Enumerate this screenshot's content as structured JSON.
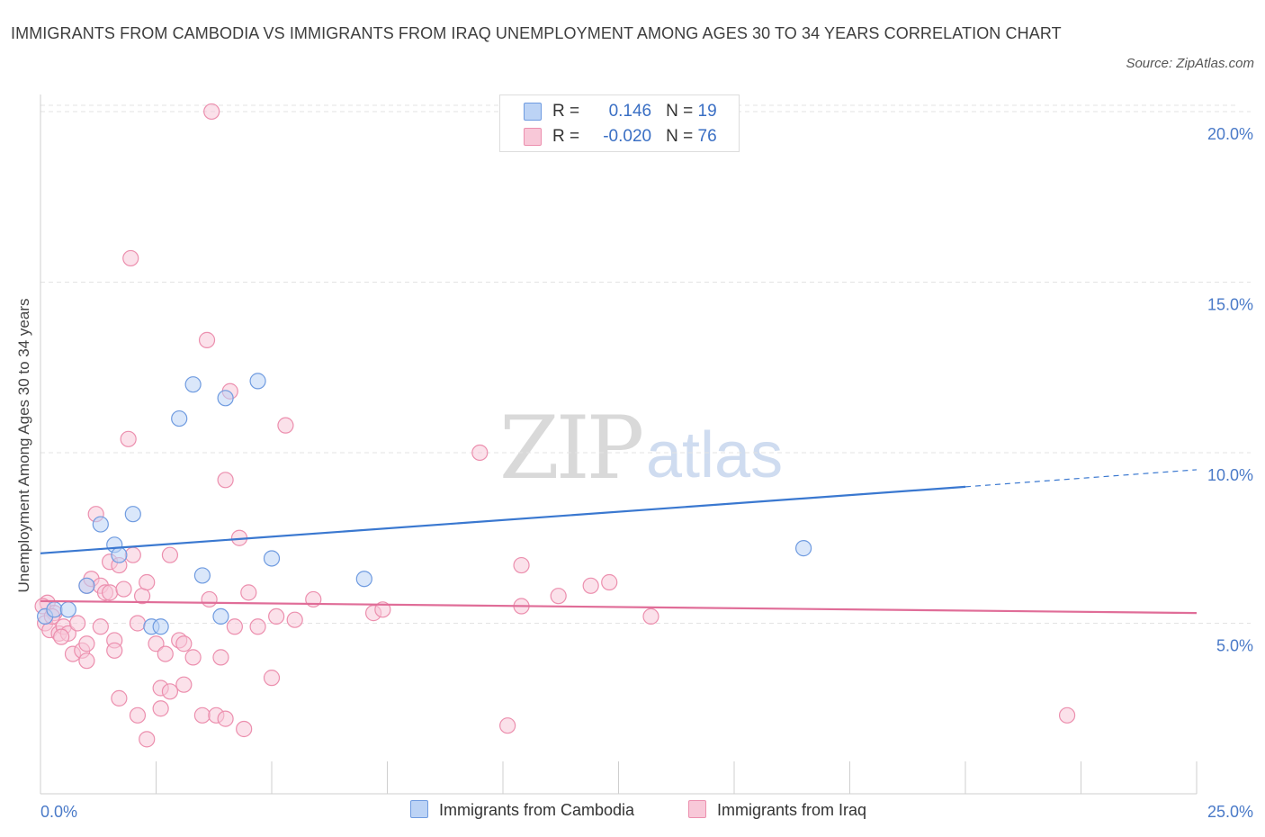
{
  "title": "IMMIGRANTS FROM CAMBODIA VS IMMIGRANTS FROM IRAQ UNEMPLOYMENT AMONG AGES 30 TO 34 YEARS CORRELATION CHART",
  "source": "Source: ZipAtlas.com",
  "watermark": {
    "zip": "ZIP",
    "atlas": "atlas"
  },
  "colors": {
    "cambodia_fill": "#bcd3f5",
    "cambodia_stroke": "#6f9be0",
    "cambodia_line": "#3a78d0",
    "iraq_fill": "#f8c8d8",
    "iraq_stroke": "#ec8fae",
    "iraq_line": "#e06d98",
    "grid": "#e3e3e3",
    "tick_text": "#4a7ac8"
  },
  "legend": {
    "rows": [
      {
        "r_label": "R =",
        "r_value": "0.146",
        "n_label": "N =",
        "n_value": "19"
      },
      {
        "r_label": "R =",
        "r_value": "-0.020",
        "n_label": "N =",
        "n_value": "76"
      }
    ]
  },
  "bottom_legend": {
    "cambodia": "Immigrants from Cambodia",
    "iraq": "Immigrants from Iraq"
  },
  "chart_data": {
    "type": "scatter",
    "title": "IMMIGRANTS FROM CAMBODIA VS IMMIGRANTS FROM IRAQ UNEMPLOYMENT AMONG AGES 30 TO 34 YEARS CORRELATION CHART",
    "xlabel": "",
    "ylabel": "Unemployment Among Ages 30 to 34 years",
    "xlim": [
      0,
      25
    ],
    "ylim": [
      0,
      20.5
    ],
    "x_tick_labels": [
      "0.0%",
      "25.0%"
    ],
    "y_ticks": [
      5,
      10,
      15,
      20
    ],
    "y_tick_labels": [
      "5.0%",
      "10.0%",
      "15.0%",
      "20.0%"
    ],
    "grid": true,
    "legend_position": "top-center",
    "series": [
      {
        "name": "Immigrants from Cambodia",
        "points": [
          [
            0.1,
            5.2
          ],
          [
            0.3,
            5.4
          ],
          [
            0.6,
            5.4
          ],
          [
            1.0,
            6.1
          ],
          [
            1.3,
            7.9
          ],
          [
            1.6,
            7.3
          ],
          [
            1.7,
            7.0
          ],
          [
            2.0,
            8.2
          ],
          [
            2.4,
            4.9
          ],
          [
            2.6,
            4.9
          ],
          [
            3.0,
            11.0
          ],
          [
            3.3,
            12.0
          ],
          [
            3.5,
            6.4
          ],
          [
            3.9,
            5.2
          ],
          [
            4.0,
            11.6
          ],
          [
            4.7,
            12.1
          ],
          [
            5.0,
            6.9
          ],
          [
            7.0,
            6.3
          ],
          [
            16.5,
            7.2
          ]
        ],
        "trend": {
          "x0": 0,
          "y0": 7.05,
          "x1": 20,
          "y1": 9.0,
          "dashed_to_x": 25,
          "dashed_to_y": 9.5
        }
      },
      {
        "name": "Immigrants from Iraq",
        "points": [
          [
            0.1,
            5.0
          ],
          [
            0.15,
            5.6
          ],
          [
            0.2,
            4.8
          ],
          [
            0.3,
            5.3
          ],
          [
            0.4,
            4.7
          ],
          [
            0.5,
            4.9
          ],
          [
            0.6,
            4.7
          ],
          [
            0.7,
            4.1
          ],
          [
            0.8,
            5.0
          ],
          [
            0.9,
            4.2
          ],
          [
            1.0,
            4.4
          ],
          [
            1.0,
            3.9
          ],
          [
            1.0,
            6.1
          ],
          [
            1.1,
            6.3
          ],
          [
            1.2,
            8.2
          ],
          [
            1.3,
            4.9
          ],
          [
            1.3,
            6.1
          ],
          [
            1.4,
            5.9
          ],
          [
            1.5,
            5.9
          ],
          [
            1.5,
            6.8
          ],
          [
            1.6,
            4.5
          ],
          [
            1.6,
            4.2
          ],
          [
            1.7,
            2.8
          ],
          [
            1.7,
            6.7
          ],
          [
            1.8,
            6.0
          ],
          [
            1.9,
            10.4
          ],
          [
            1.95,
            15.7
          ],
          [
            2.0,
            7.0
          ],
          [
            2.1,
            2.3
          ],
          [
            2.1,
            5.0
          ],
          [
            2.2,
            5.8
          ],
          [
            2.3,
            6.2
          ],
          [
            2.3,
            1.6
          ],
          [
            2.5,
            4.4
          ],
          [
            2.6,
            2.5
          ],
          [
            2.6,
            3.1
          ],
          [
            2.7,
            4.1
          ],
          [
            2.8,
            3.0
          ],
          [
            2.8,
            7.0
          ],
          [
            3.0,
            4.5
          ],
          [
            3.1,
            4.4
          ],
          [
            3.1,
            3.2
          ],
          [
            3.3,
            4.0
          ],
          [
            3.5,
            2.3
          ],
          [
            3.6,
            13.3
          ],
          [
            3.65,
            5.7
          ],
          [
            3.7,
            20.0
          ],
          [
            3.8,
            2.3
          ],
          [
            3.9,
            4.0
          ],
          [
            4.0,
            2.2
          ],
          [
            4.0,
            9.2
          ],
          [
            4.1,
            11.8
          ],
          [
            4.2,
            4.9
          ],
          [
            4.3,
            7.5
          ],
          [
            4.4,
            1.9
          ],
          [
            4.5,
            5.9
          ],
          [
            4.7,
            4.9
          ],
          [
            5.0,
            3.4
          ],
          [
            5.1,
            5.2
          ],
          [
            5.3,
            10.8
          ],
          [
            5.5,
            5.1
          ],
          [
            5.9,
            5.7
          ],
          [
            7.2,
            5.3
          ],
          [
            7.4,
            5.4
          ],
          [
            9.5,
            10.0
          ],
          [
            10.1,
            2.0
          ],
          [
            10.4,
            6.7
          ],
          [
            10.4,
            5.5
          ],
          [
            11.2,
            5.8
          ],
          [
            11.9,
            6.1
          ],
          [
            12.3,
            6.2
          ],
          [
            13.2,
            5.2
          ],
          [
            22.2,
            2.3
          ],
          [
            0.05,
            5.5
          ],
          [
            0.25,
            5.2
          ],
          [
            0.45,
            4.6
          ]
        ],
        "trend": {
          "x0": 0,
          "y0": 5.65,
          "x1": 25,
          "y1": 5.3
        }
      }
    ]
  }
}
